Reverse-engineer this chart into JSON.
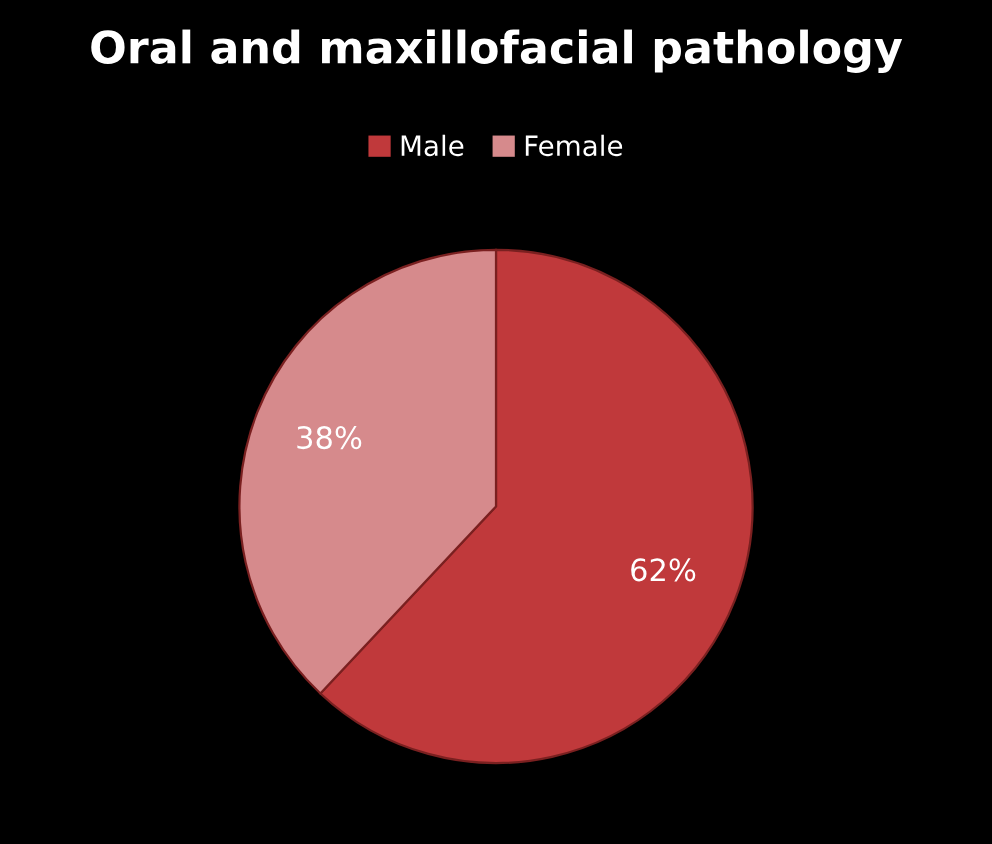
{
  "chart_data": {
    "type": "pie",
    "title": "Oral and maxillofacial pathology",
    "categories": [
      "Male",
      "Female"
    ],
    "values": [
      62,
      38
    ],
    "colors": [
      "#c0393b",
      "#d68a8c"
    ],
    "value_labels": [
      "62%",
      "38%"
    ],
    "legend": "top"
  }
}
